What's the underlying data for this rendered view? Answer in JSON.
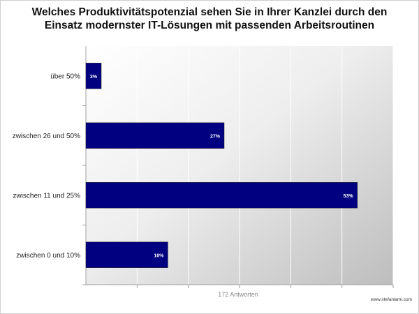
{
  "title_lines": [
    "Welches Produktivitätspotenzial sehen Sie in Ihrer Kanzlei durch den",
    "Einsatz modernster IT-Lösungen mit passenden Arbeitsroutinen"
  ],
  "credit": "www.stefanlami.com",
  "chart_data": {
    "type": "bar",
    "orientation": "horizontal",
    "title": "Welches Produktivitätspotenzial sehen Sie in Ihrer Kanzlei durch den Einsatz modernster IT-Lösungen mit passenden Arbeitsroutinen",
    "categories": [
      "über 50%",
      "zwischen 26 und 50%",
      "zwischen 11 und 25%",
      "zwischen 0 und 10%"
    ],
    "values": [
      3,
      27,
      53,
      16
    ],
    "data_labels": [
      "3%",
      "27%",
      "53%",
      "16%"
    ],
    "xlabel": "172 Antworten",
    "ylabel": "",
    "xlim": [
      0,
      60
    ],
    "grid": true,
    "bar_color": "#000080",
    "plot_background": "gradient-gray",
    "legend": "none"
  }
}
